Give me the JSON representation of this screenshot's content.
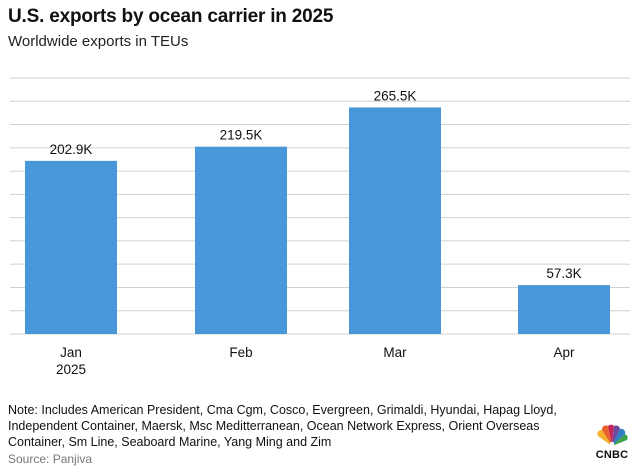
{
  "header": {
    "title": "U.S. exports by ocean carrier in 2025",
    "subtitle": "Worldwide exports in TEUs"
  },
  "chart_data": {
    "type": "bar",
    "categories": [
      "Jan\n2025",
      "Feb",
      "Mar",
      "Apr"
    ],
    "values": [
      202.9,
      219.5,
      265.5,
      57.3
    ],
    "data_labels": [
      "202.9K",
      "219.5K",
      "265.5K",
      "57.3K"
    ],
    "unit": "TEUs (thousands)",
    "title": "U.S. exports by ocean carrier in 2025",
    "subtitle": "Worldwide exports in TEUs",
    "xlabel": "",
    "ylabel": "",
    "ylim": [
      0,
      300
    ],
    "grid": true,
    "bar_color": "#4897d8",
    "gridline_color": "#d0d0d0"
  },
  "footer": {
    "note": "Note: Includes American President, Cma Cgm, Cosco, Evergreen, Grimaldi, Hyundai, Hapag Lloyd, Independent Container, Maersk, Msc Meditterranean, Ocean Network Express, Orient Overseas Container, Sm Line, Seaboard Marine, Yang Ming and Zim",
    "source": "Source: Panjiva",
    "logo_text": "CNBC"
  },
  "logo_icon": "cnbc-peacock-logo"
}
